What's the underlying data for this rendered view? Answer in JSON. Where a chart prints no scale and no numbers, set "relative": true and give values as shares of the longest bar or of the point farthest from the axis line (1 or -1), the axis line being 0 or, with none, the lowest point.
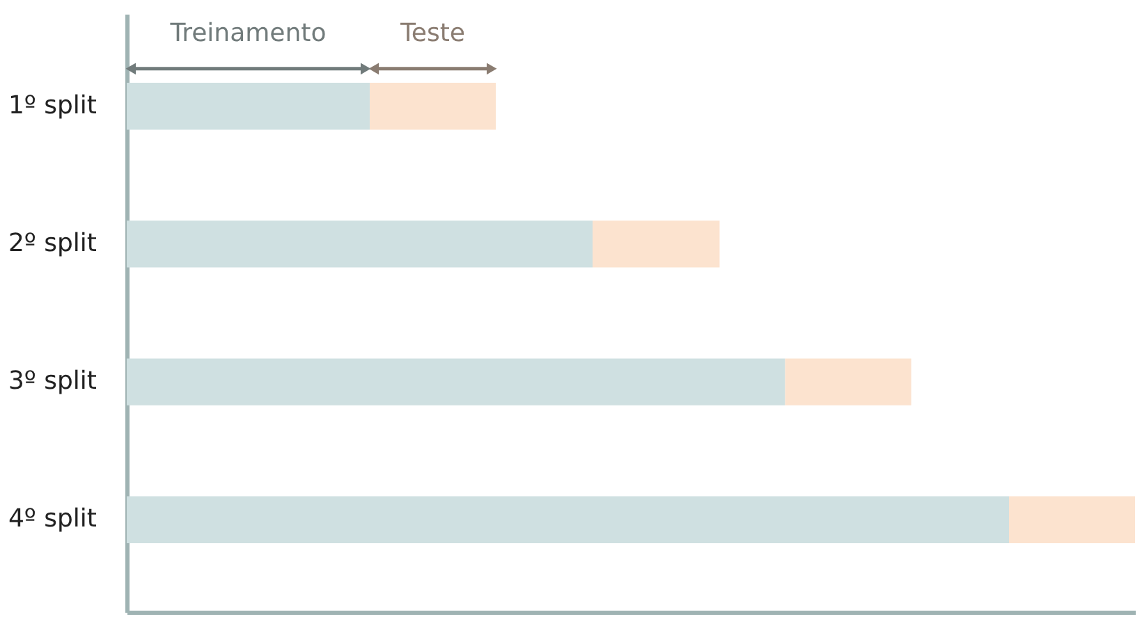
{
  "chart_data": {
    "type": "bar",
    "orientation": "horizontal",
    "stacked": true,
    "relative": true,
    "categories": [
      "1º split",
      "2º split",
      "3º split",
      "4º split"
    ],
    "series": [
      {
        "name": "Treinamento",
        "color": "#cfe0e1",
        "values": [
          0.241,
          0.462,
          0.653,
          0.875
        ]
      },
      {
        "name": "Teste",
        "color": "#fce3cf",
        "values": [
          0.125,
          0.126,
          0.125,
          0.125
        ]
      }
    ]
  }
}
